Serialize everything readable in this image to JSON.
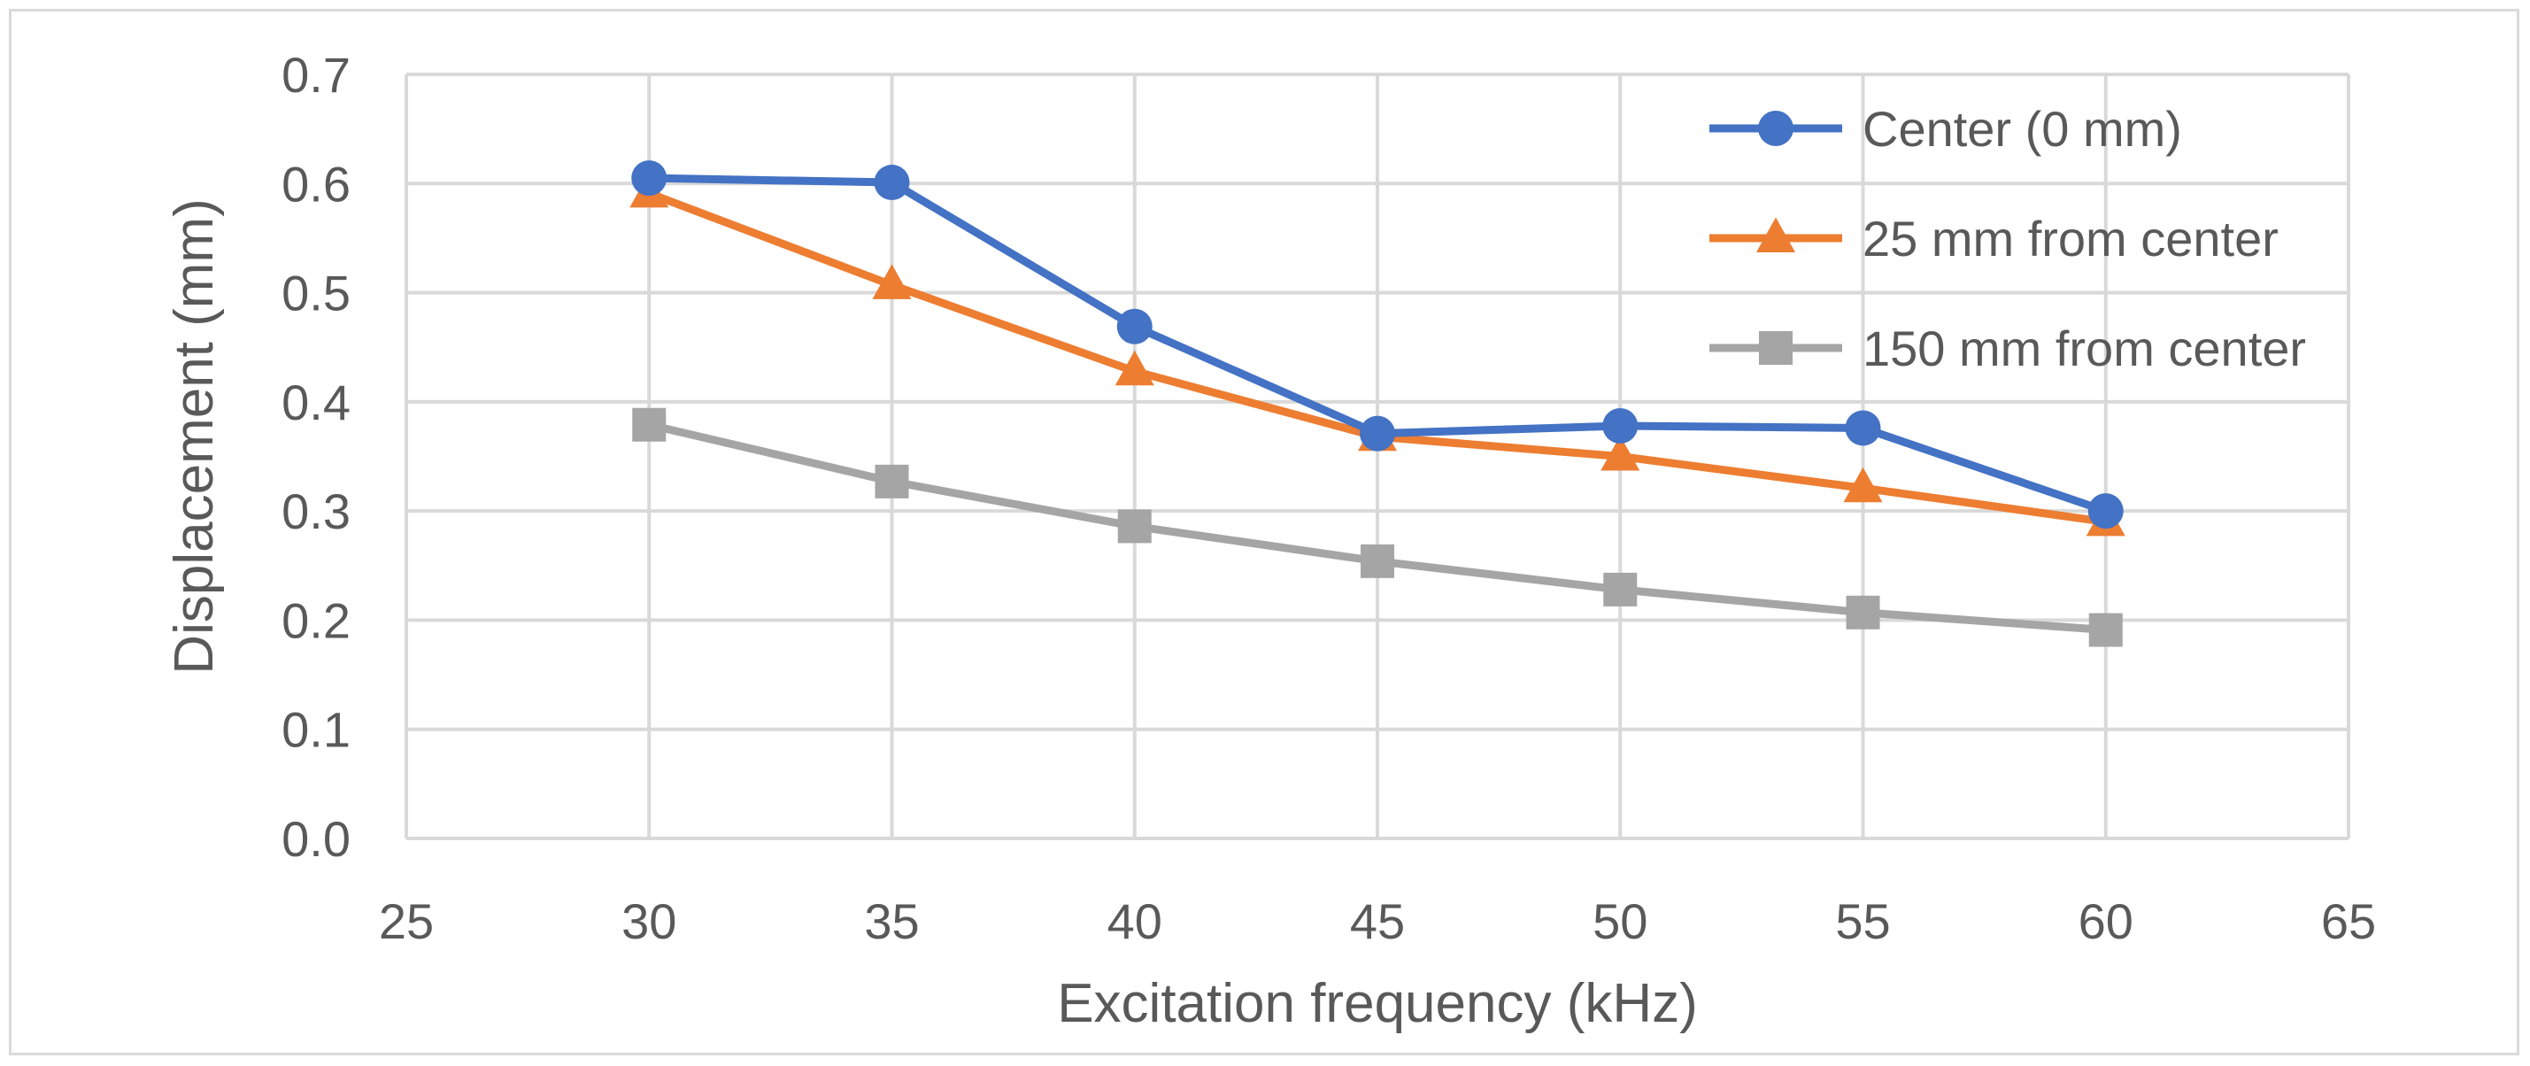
{
  "chart_data": {
    "type": "line",
    "title": "",
    "xlabel": "Excitation frequency (kHz)",
    "ylabel": "Displacement (mm)",
    "xlim": [
      25,
      65
    ],
    "ylim": [
      0,
      0.7
    ],
    "x_ticks": [
      25,
      30,
      35,
      40,
      45,
      50,
      55,
      60,
      65
    ],
    "y_ticks": [
      0.0,
      0.1,
      0.2,
      0.3,
      0.4,
      0.5,
      0.6,
      0.7
    ],
    "x_tick_labels": [
      "25",
      "30",
      "35",
      "40",
      "45",
      "50",
      "55",
      "60",
      "65"
    ],
    "y_tick_labels": [
      "0.0",
      "0.1",
      "0.2",
      "0.3",
      "0.4",
      "0.5",
      "0.6",
      "0.7"
    ],
    "grid": true,
    "legend_position": "top-right",
    "x": [
      30,
      35,
      40,
      45,
      50,
      55,
      60
    ],
    "series": [
      {
        "name": "Center (0 mm)",
        "color": "#4472c4",
        "marker": "circle",
        "values": [
          0.605,
          0.601,
          0.469,
          0.371,
          0.378,
          0.376,
          0.3
        ]
      },
      {
        "name": "25 mm from center",
        "color": "#ed7d31",
        "marker": "triangle",
        "values": [
          0.591,
          0.507,
          0.428,
          0.368,
          0.35,
          0.321,
          0.29
        ]
      },
      {
        "name": "150 mm from center",
        "color": "#a5a5a5",
        "marker": "square",
        "values": [
          0.379,
          0.327,
          0.286,
          0.254,
          0.228,
          0.207,
          0.191
        ]
      }
    ]
  }
}
